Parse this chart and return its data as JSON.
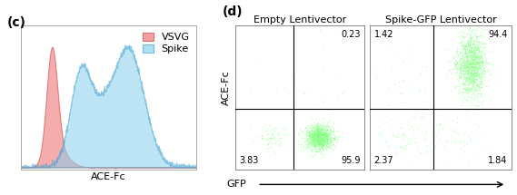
{
  "panel_c": {
    "label": "(c)",
    "xlabel": "ACE-Fc",
    "legend": [
      "VSVG",
      "Spike"
    ],
    "vsvg_color": "#f08080",
    "vsvg_edge": "#d05050",
    "spike_color": "#87ceeb",
    "spike_edge": "#40a0d0"
  },
  "panel_d": {
    "label": "(d)",
    "xlabel": "GFP",
    "ylabel": "ACE-Fc",
    "title1": "Empty Lentivector",
    "title2": "Spike-GFP Lentivector",
    "left_quads": [
      "",
      "0.23",
      "3.83",
      "95.9"
    ],
    "right_quads": [
      "1.42",
      "94.4",
      "2.37",
      "1.84"
    ]
  },
  "fig_bg": "#ffffff",
  "text_color": "#000000",
  "fontsize_label": 8,
  "fontsize_panel": 10,
  "fontsize_quad": 7,
  "fontsize_legend": 8,
  "fontsize_title": 8,
  "fontsize_axis_label": 8
}
